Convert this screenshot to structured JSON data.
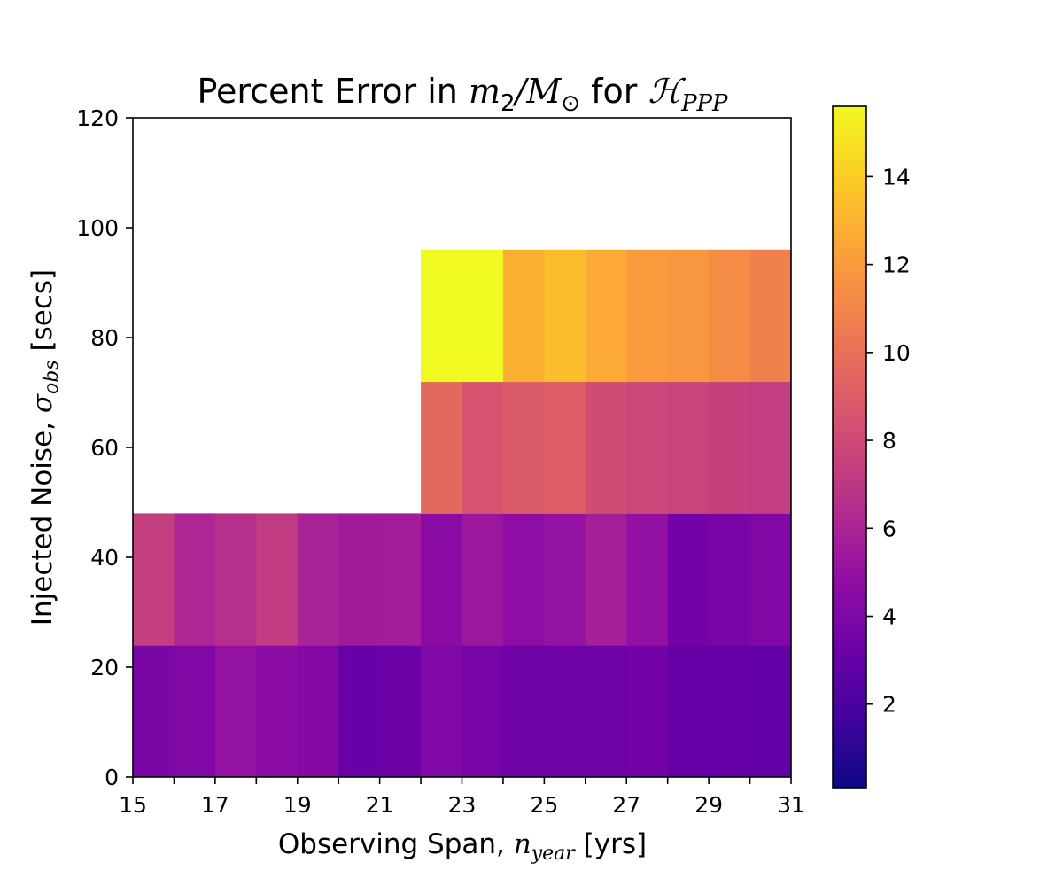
{
  "chart_data": {
    "type": "heatmap",
    "title": {
      "prefix": "Percent Error in ",
      "m": "m",
      "m_sub": "2",
      "slash": "/",
      "M": "M",
      "M_sub": "⊙",
      "mid": " for ",
      "H": "ℋ",
      "H_sub": "PPP"
    },
    "xlabel": {
      "prefix": "Observing Span, ",
      "var": "n",
      "sub": "year",
      "suffix": " [yrs]"
    },
    "ylabel": {
      "prefix": "Injected Noise, ",
      "var": "σ",
      "sub": "obs",
      "suffix": " [secs]"
    },
    "xlim": [
      15,
      31
    ],
    "ylim": [
      0,
      120
    ],
    "x_tick_labels": [
      "15",
      "17",
      "19",
      "21",
      "23",
      "25",
      "27",
      "29",
      "31"
    ],
    "y_tick_labels": [
      "0",
      "20",
      "40",
      "60",
      "80",
      "100",
      "120"
    ],
    "colorbar": {
      "colormap": "plasma",
      "range": [
        0.1,
        15.6
      ],
      "tick_labels": [
        "2",
        "4",
        "6",
        "8",
        "10",
        "12",
        "14"
      ]
    },
    "x_bins": [
      15,
      16,
      17,
      18,
      19,
      20,
      21,
      22,
      23,
      24,
      25,
      26,
      27,
      28,
      29,
      30,
      31
    ],
    "rows": [
      {
        "y_range": [
          0,
          24
        ],
        "x_start": 15,
        "values": [
          3.9,
          4.2,
          5.0,
          4.6,
          4.3,
          3.1,
          3.3,
          4.1,
          3.8,
          3.4,
          3.4,
          3.4,
          3.6,
          3.0,
          3.0,
          2.9
        ]
      },
      {
        "y_range": [
          24,
          48
        ],
        "x_start": 15,
        "values": [
          7.4,
          6.1,
          6.6,
          7.2,
          5.9,
          5.5,
          5.6,
          4.6,
          5.3,
          4.7,
          5.0,
          5.7,
          4.9,
          3.6,
          3.8,
          4.2
        ]
      },
      {
        "y_range": [
          48,
          72
        ],
        "x_start": 22,
        "values": [
          9.6,
          8.5,
          8.9,
          9.1,
          8.1,
          7.8,
          7.7,
          7.5,
          7.3
        ]
      },
      {
        "y_range": [
          72,
          96
        ],
        "x_start": 22,
        "values": [
          15.6,
          15.6,
          12.9,
          13.4,
          12.6,
          12.0,
          11.8,
          11.3,
          10.8
        ]
      }
    ]
  }
}
